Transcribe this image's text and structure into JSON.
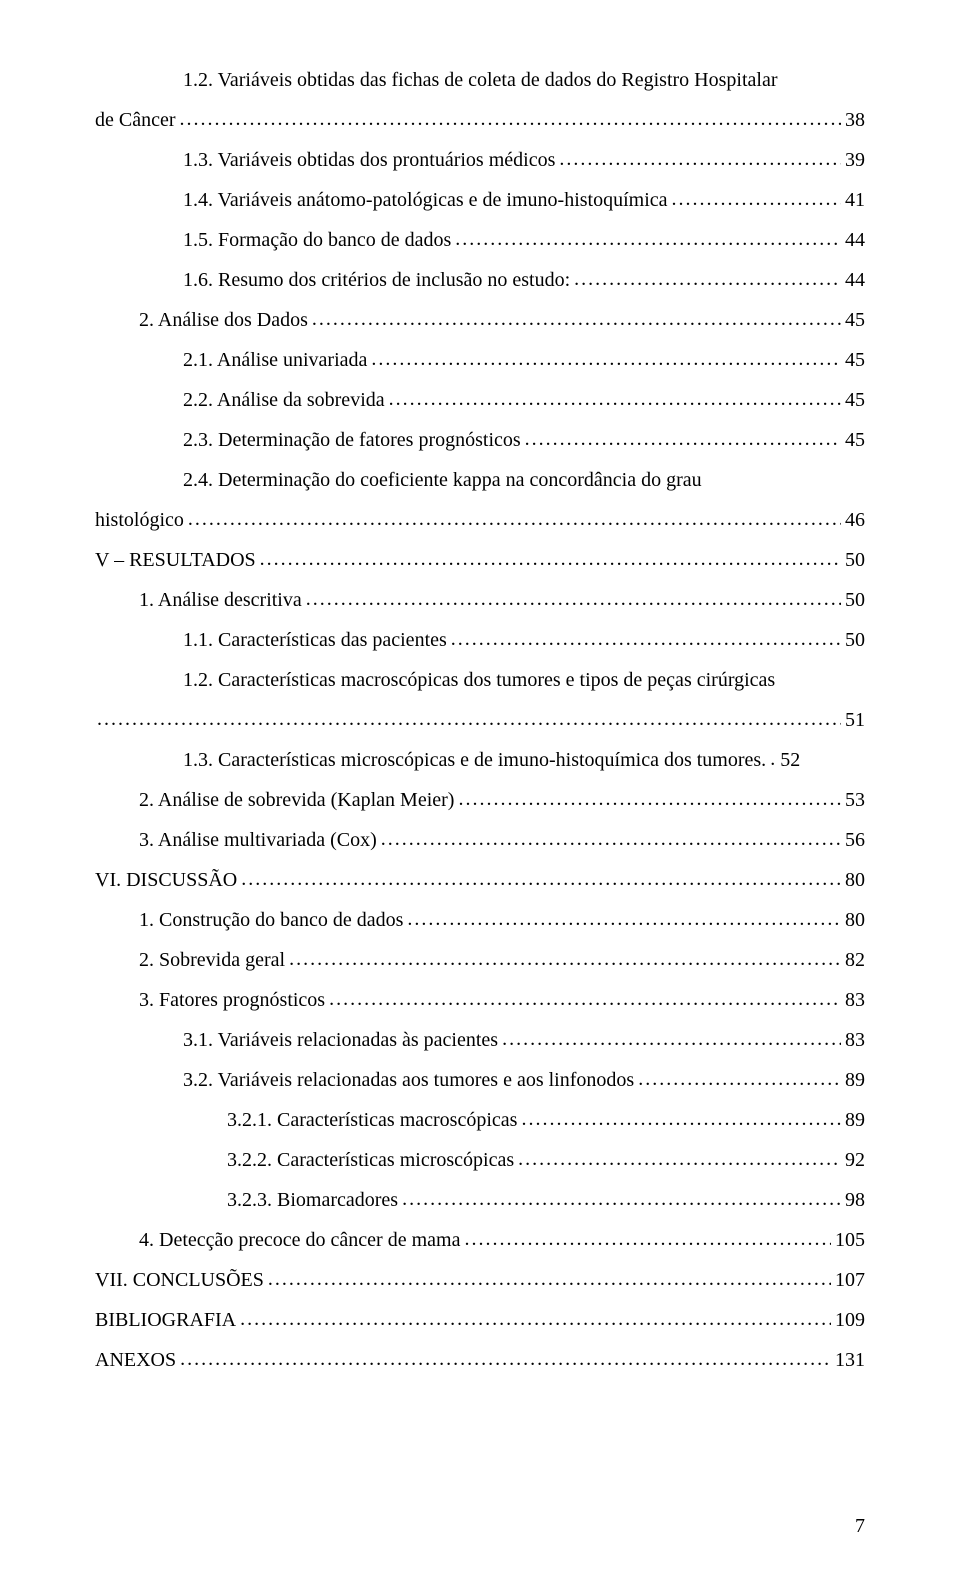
{
  "typography": {
    "font_family": "Times New Roman",
    "font_size_pt": 15,
    "line_height": 2.0,
    "text_color": "#000000",
    "background_color": "#ffffff"
  },
  "page_number": "7",
  "toc_entries": [
    {
      "indent": 2,
      "label": "1.2. Variáveis obtidas das fichas de coleta de dados do Registro Hospitalar",
      "page": null,
      "wrap": true
    },
    {
      "indent": 0,
      "label": "de Câncer",
      "page": "38",
      "continuation": true
    },
    {
      "indent": 2,
      "label": "1.3. Variáveis obtidas dos prontuários médicos",
      "page": "39"
    },
    {
      "indent": 2,
      "label": "1.4. Variáveis anátomo-patológicas e de imuno-histoquímica",
      "page": "41"
    },
    {
      "indent": 2,
      "label": "1.5. Formação do banco de dados",
      "page": "44"
    },
    {
      "indent": 2,
      "label": "1.6. Resumo dos critérios de inclusão no estudo:",
      "page": "44"
    },
    {
      "indent": 1,
      "label": "2. Análise dos Dados",
      "page": "45"
    },
    {
      "indent": 2,
      "label": "2.1. Análise univariada",
      "page": "45"
    },
    {
      "indent": 2,
      "label": "2.2. Análise da sobrevida",
      "page": "45"
    },
    {
      "indent": 2,
      "label": "2.3. Determinação de fatores prognósticos",
      "page": "45"
    },
    {
      "indent": 2,
      "label": "2.4. Determinação do coeficiente kappa na concordância do grau",
      "page": null,
      "wrap": true
    },
    {
      "indent": 0,
      "label": "histológico",
      "page": "46",
      "continuation": true
    },
    {
      "indent": 0,
      "label": "V – RESULTADOS",
      "page": "50"
    },
    {
      "indent": 1,
      "label": "1. Análise descritiva",
      "page": "50"
    },
    {
      "indent": 2,
      "label": "1.1. Características das pacientes",
      "page": "50"
    },
    {
      "indent": 2,
      "label": "1.2. Características macroscópicas dos tumores e tipos de peças cirúrgicas",
      "page": null,
      "wrap": true
    },
    {
      "indent": 0,
      "label": "",
      "page": "51",
      "continuation": true,
      "dots_only": true
    },
    {
      "indent": 2,
      "label": "1.3. Características microscópicas e de imuno-histoquímica dos tumores.",
      "page": "52",
      "tight_dots": true
    },
    {
      "indent": 1,
      "label": "2. Análise de sobrevida (Kaplan Meier)",
      "page": "53"
    },
    {
      "indent": 1,
      "label": "3. Análise multivariada (Cox)",
      "page": "56"
    },
    {
      "indent": 0,
      "label": "VI. DISCUSSÃO",
      "page": "80"
    },
    {
      "indent": 1,
      "label": "1. Construção do banco de dados",
      "page": "80"
    },
    {
      "indent": 1,
      "label": "2. Sobrevida geral",
      "page": "82"
    },
    {
      "indent": 1,
      "label": "3. Fatores prognósticos",
      "page": "83"
    },
    {
      "indent": 2,
      "label": "3.1. Variáveis relacionadas às pacientes",
      "page": "83"
    },
    {
      "indent": 2,
      "label": "3.2. Variáveis relacionadas aos tumores e aos linfonodos",
      "page": "89"
    },
    {
      "indent": 3,
      "label": "3.2.1. Características macroscópicas",
      "page": "89"
    },
    {
      "indent": 3,
      "label": "3.2.2. Características microscópicas",
      "page": "92"
    },
    {
      "indent": 3,
      "label": "3.2.3. Biomarcadores",
      "page": "98"
    },
    {
      "indent": 1,
      "label": "4. Detecção precoce do câncer de mama",
      "page": "105"
    },
    {
      "indent": 0,
      "label": "VII. CONCLUSÕES",
      "page": "107"
    },
    {
      "indent": 0,
      "label": "BIBLIOGRAFIA",
      "page": "109"
    },
    {
      "indent": 0,
      "label": "ANEXOS",
      "page": "131"
    }
  ]
}
